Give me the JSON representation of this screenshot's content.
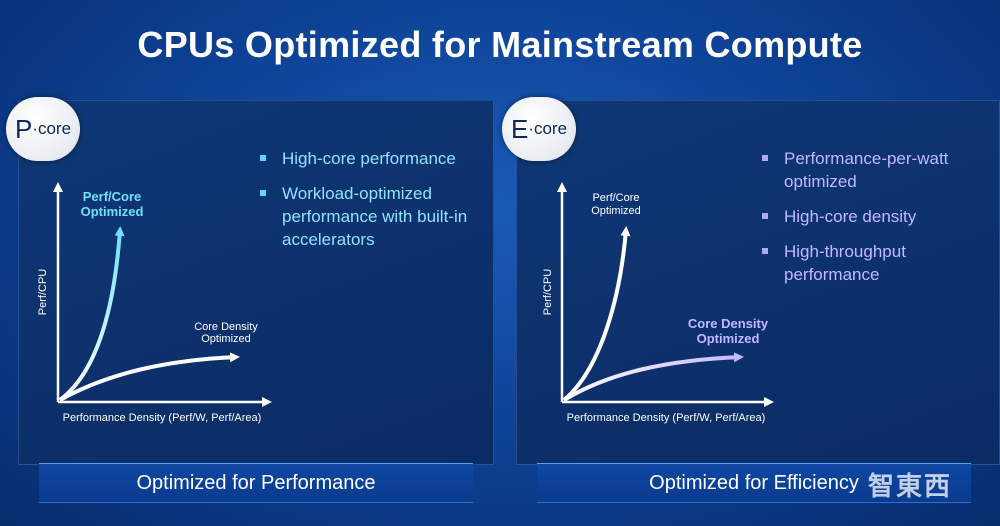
{
  "title": "CPUs Optimized for Mainstream Compute",
  "pcore": {
    "badge_letter": "P",
    "badge_suffix": "·core",
    "bullets": [
      "High-core performance",
      "Workload-optimized performance with built-in accelerators"
    ],
    "curve_steep_label": [
      "Perf/Core",
      "Optimized"
    ],
    "curve_flat_label": [
      "Core Density",
      "Optimized"
    ],
    "y_axis": "Perf/CPU",
    "x_axis": "Performance Density (Perf/W, Perf/Area)",
    "footer": "Optimized for Performance",
    "accent": "#5fd4ff"
  },
  "ecore": {
    "badge_letter": "E",
    "badge_suffix": "·core",
    "bullets": [
      "Performance-per-watt optimized",
      "High-core density",
      "High-throughput performance"
    ],
    "curve_steep_label": [
      "Perf/Core",
      "Optimized"
    ],
    "curve_flat_label": [
      "Core Density",
      "Optimized"
    ],
    "y_axis": "Perf/CPU",
    "x_axis": "Performance Density (Perf/W, Perf/Area)",
    "footer": "Optimized for Efficiency",
    "accent": "#b2a4ff"
  },
  "watermark": "智東西"
}
